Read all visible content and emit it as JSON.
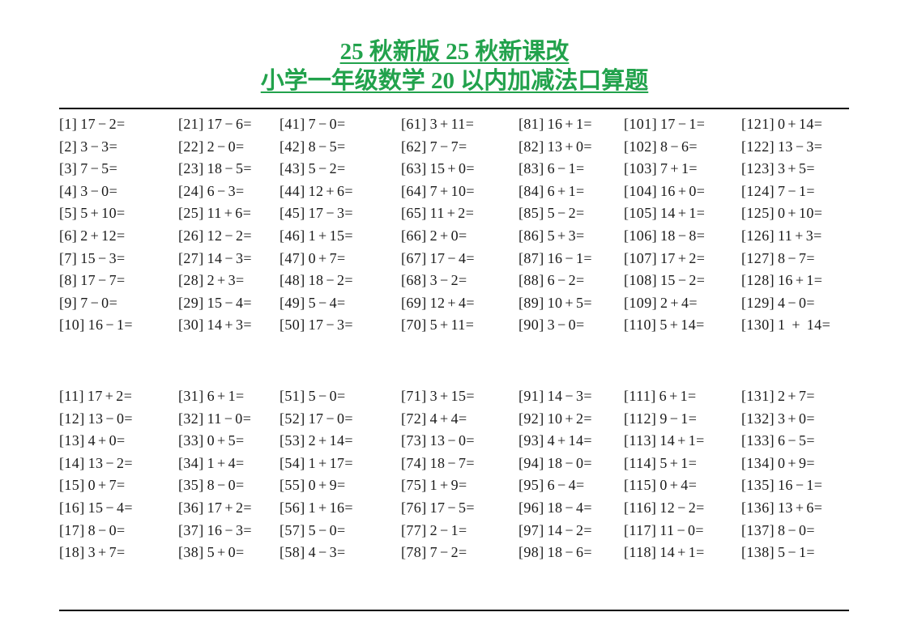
{
  "header": {
    "line1": "25 秋新版 25 秋新课改",
    "line2": "小学一年级数学 20 以内加减法口算题",
    "title_color": "#22a24c"
  },
  "worksheet": {
    "sections": [
      {
        "name": "top",
        "columns": [
          [
            {
              "id": 1,
              "expr": "17−2="
            },
            {
              "id": 2,
              "expr": "3−3="
            },
            {
              "id": 3,
              "expr": "7−5="
            },
            {
              "id": 4,
              "expr": "3−0="
            },
            {
              "id": 5,
              "expr": "5+10="
            },
            {
              "id": 6,
              "expr": "2+12="
            },
            {
              "id": 7,
              "expr": "15−3="
            },
            {
              "id": 8,
              "expr": "17−7="
            },
            {
              "id": 9,
              "expr": "7−0="
            },
            {
              "id": 10,
              "expr": "16−1="
            }
          ],
          [
            {
              "id": 21,
              "expr": "17−6="
            },
            {
              "id": 22,
              "expr": "2−0="
            },
            {
              "id": 23,
              "expr": "18−5="
            },
            {
              "id": 24,
              "expr": "6−3="
            },
            {
              "id": 25,
              "expr": "11+6="
            },
            {
              "id": 26,
              "expr": "12−2="
            },
            {
              "id": 27,
              "expr": "14−3="
            },
            {
              "id": 28,
              "expr": "2+3="
            },
            {
              "id": 29,
              "expr": "15−4="
            },
            {
              "id": 30,
              "expr": "14+3="
            }
          ],
          [
            {
              "id": 41,
              "expr": "7−0="
            },
            {
              "id": 42,
              "expr": "8−5="
            },
            {
              "id": 43,
              "expr": "5−2="
            },
            {
              "id": 44,
              "expr": "12+6="
            },
            {
              "id": 45,
              "expr": "17−3="
            },
            {
              "id": 46,
              "expr": "1+15="
            },
            {
              "id": 47,
              "expr": "0+7="
            },
            {
              "id": 48,
              "expr": "18−2="
            },
            {
              "id": 49,
              "expr": "5−4="
            },
            {
              "id": 50,
              "expr": "17−3="
            }
          ],
          [
            {
              "id": 61,
              "expr": "3+11="
            },
            {
              "id": 62,
              "expr": "7−7="
            },
            {
              "id": 63,
              "expr": "15+0="
            },
            {
              "id": 64,
              "expr": "7+10="
            },
            {
              "id": 65,
              "expr": "11+2="
            },
            {
              "id": 66,
              "expr": "2+0="
            },
            {
              "id": 67,
              "expr": "17−4="
            },
            {
              "id": 68,
              "expr": "3−2="
            },
            {
              "id": 69,
              "expr": "12+4="
            },
            {
              "id": 70,
              "expr": "5+11="
            }
          ],
          [
            {
              "id": 81,
              "expr": "16+1="
            },
            {
              "id": 82,
              "expr": "13+0="
            },
            {
              "id": 83,
              "expr": "6−1="
            },
            {
              "id": 84,
              "expr": "6+1="
            },
            {
              "id": 85,
              "expr": "5−2="
            },
            {
              "id": 86,
              "expr": "5+3="
            },
            {
              "id": 87,
              "expr": "16−1="
            },
            {
              "id": 88,
              "expr": "6−2="
            },
            {
              "id": 89,
              "expr": "10+5="
            },
            {
              "id": 90,
              "expr": "3−0="
            }
          ],
          [
            {
              "id": 101,
              "expr": "17−1="
            },
            {
              "id": 102,
              "expr": "8−6="
            },
            {
              "id": 103,
              "expr": "7+1="
            },
            {
              "id": 104,
              "expr": "16+0="
            },
            {
              "id": 105,
              "expr": "14+1="
            },
            {
              "id": 106,
              "expr": "18−8="
            },
            {
              "id": 107,
              "expr": "17+2="
            },
            {
              "id": 108,
              "expr": "15−2="
            },
            {
              "id": 109,
              "expr": "2+4="
            },
            {
              "id": 110,
              "expr": "5+14="
            }
          ],
          [
            {
              "id": 121,
              "expr": "0+14="
            },
            {
              "id": 122,
              "expr": "13−3="
            },
            {
              "id": 123,
              "expr": "3+5="
            },
            {
              "id": 124,
              "expr": "7−1="
            },
            {
              "id": 125,
              "expr": "0+10="
            },
            {
              "id": 126,
              "expr": "11+3="
            },
            {
              "id": 127,
              "expr": "8−7="
            },
            {
              "id": 128,
              "expr": "16+1="
            },
            {
              "id": 129,
              "expr": "4−0="
            },
            {
              "id": 130,
              "expr": "1 + 14="
            }
          ]
        ]
      },
      {
        "name": "bottom",
        "columns": [
          [
            {
              "id": 11,
              "expr": "17+2="
            },
            {
              "id": 12,
              "expr": "13−0="
            },
            {
              "id": 13,
              "expr": "4+0="
            },
            {
              "id": 14,
              "expr": "13−2="
            },
            {
              "id": 15,
              "expr": "0+7="
            },
            {
              "id": 16,
              "expr": "15−4="
            },
            {
              "id": 17,
              "expr": "8−0="
            },
            {
              "id": 18,
              "expr": "3+7="
            }
          ],
          [
            {
              "id": 31,
              "expr": "6+1="
            },
            {
              "id": 32,
              "expr": "11−0="
            },
            {
              "id": 33,
              "expr": "0+5="
            },
            {
              "id": 34,
              "expr": "1+4="
            },
            {
              "id": 35,
              "expr": "8−0="
            },
            {
              "id": 36,
              "expr": "17+2="
            },
            {
              "id": 37,
              "expr": "16−3="
            },
            {
              "id": 38,
              "expr": "5+0="
            }
          ],
          [
            {
              "id": 51,
              "expr": "5−0="
            },
            {
              "id": 52,
              "expr": "17−0="
            },
            {
              "id": 53,
              "expr": "2+14="
            },
            {
              "id": 54,
              "expr": "1+17="
            },
            {
              "id": 55,
              "expr": "0+9="
            },
            {
              "id": 56,
              "expr": "1+16="
            },
            {
              "id": 57,
              "expr": "5−0="
            },
            {
              "id": 58,
              "expr": "4−3="
            }
          ],
          [
            {
              "id": 71,
              "expr": "3+15="
            },
            {
              "id": 72,
              "expr": "4+4="
            },
            {
              "id": 73,
              "expr": "13−0="
            },
            {
              "id": 74,
              "expr": "18−7="
            },
            {
              "id": 75,
              "expr": "1+9="
            },
            {
              "id": 76,
              "expr": "17−5="
            },
            {
              "id": 77,
              "expr": "2−1="
            },
            {
              "id": 78,
              "expr": "7−2="
            }
          ],
          [
            {
              "id": 91,
              "expr": "14−3="
            },
            {
              "id": 92,
              "expr": "10+2="
            },
            {
              "id": 93,
              "expr": "4+14="
            },
            {
              "id": 94,
              "expr": "18−0="
            },
            {
              "id": 95,
              "expr": "6−4="
            },
            {
              "id": 96,
              "expr": "18−4="
            },
            {
              "id": 97,
              "expr": "14−2="
            },
            {
              "id": 98,
              "expr": "18−6="
            }
          ],
          [
            {
              "id": 111,
              "expr": "6+1="
            },
            {
              "id": 112,
              "expr": "9−1="
            },
            {
              "id": 113,
              "expr": "14+1="
            },
            {
              "id": 114,
              "expr": "5+1="
            },
            {
              "id": 115,
              "expr": "0+4="
            },
            {
              "id": 116,
              "expr": "12−2="
            },
            {
              "id": 117,
              "expr": "11−0="
            },
            {
              "id": 118,
              "expr": "14+1="
            }
          ],
          [
            {
              "id": 131,
              "expr": "2+7="
            },
            {
              "id": 132,
              "expr": "3+0="
            },
            {
              "id": 133,
              "expr": "6−5="
            },
            {
              "id": 134,
              "expr": "0+9="
            },
            {
              "id": 135,
              "expr": "16−1="
            },
            {
              "id": 136,
              "expr": "13+6="
            },
            {
              "id": 137,
              "expr": "8−0="
            },
            {
              "id": 138,
              "expr": "5−1="
            }
          ]
        ]
      }
    ]
  }
}
